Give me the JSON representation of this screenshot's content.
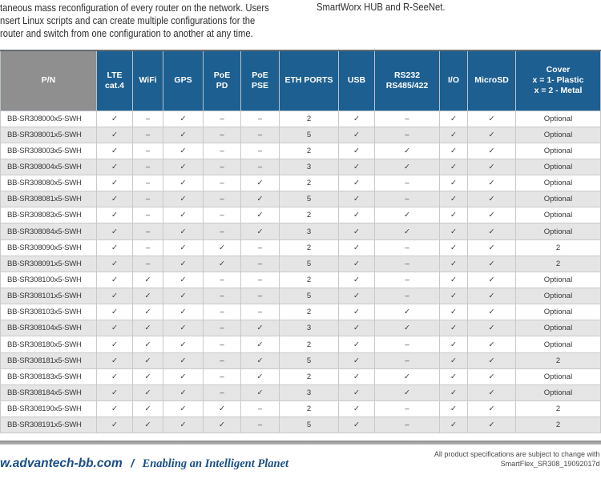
{
  "intro": {
    "left_lines": [
      "taneous mass reconfiguration of every router on the network. Users",
      "nsert Linux scripts and can create multiple configurations for the",
      "router and switch from one configuration to another at any time."
    ],
    "right_text": "SmartWorx HUB and R-SeeNet."
  },
  "table": {
    "header": {
      "pn": "P/N",
      "cols": [
        "LTE\ncat.4",
        "WiFi",
        "GPS",
        "PoE\nPD",
        "PoE\nPSE",
        "ETH PORTS",
        "USB",
        "RS232\nRS485/422",
        "I/O",
        "MicroSD",
        "Cover\nx = 1- Plastic\nx = 2 - Metal"
      ]
    },
    "check_glyph": "✓",
    "dash_glyph": "–",
    "rows": [
      {
        "pn": "BB-SR308000x5-SWH",
        "cells": [
          "✓",
          "–",
          "✓",
          "–",
          "–",
          "2",
          "✓",
          "–",
          "✓",
          "✓",
          "Optional"
        ]
      },
      {
        "pn": "BB-SR308001x5-SWH",
        "cells": [
          "✓",
          "–",
          "✓",
          "–",
          "–",
          "5",
          "✓",
          "–",
          "✓",
          "✓",
          "Optional"
        ]
      },
      {
        "pn": "BB-SR308003x5-SWH",
        "cells": [
          "✓",
          "–",
          "✓",
          "–",
          "–",
          "2",
          "✓",
          "✓",
          "✓",
          "✓",
          "Optional"
        ]
      },
      {
        "pn": "BB-SR308004x5-SWH",
        "cells": [
          "✓",
          "–",
          "✓",
          "–",
          "–",
          "3",
          "✓",
          "✓",
          "✓",
          "✓",
          "Optional"
        ]
      },
      {
        "pn": "BB-SR308080x5-SWH",
        "cells": [
          "✓",
          "–",
          "✓",
          "–",
          "✓",
          "2",
          "✓",
          "–",
          "✓",
          "✓",
          "Optional"
        ]
      },
      {
        "pn": "BB-SR308081x5-SWH",
        "cells": [
          "✓",
          "–",
          "✓",
          "–",
          "✓",
          "5",
          "✓",
          "–",
          "✓",
          "✓",
          "Optional"
        ]
      },
      {
        "pn": "BB-SR308083x5-SWH",
        "cells": [
          "✓",
          "–",
          "✓",
          "–",
          "✓",
          "2",
          "✓",
          "✓",
          "✓",
          "✓",
          "Optional"
        ]
      },
      {
        "pn": "BB-SR308084x5-SWH",
        "cells": [
          "✓",
          "–",
          "✓",
          "–",
          "✓",
          "3",
          "✓",
          "✓",
          "✓",
          "✓",
          "Optional"
        ]
      },
      {
        "pn": "BB-SR308090x5-SWH",
        "cells": [
          "✓",
          "–",
          "✓",
          "✓",
          "–",
          "2",
          "✓",
          "–",
          "✓",
          "✓",
          "2"
        ]
      },
      {
        "pn": "BB-SR308091x5-SWH",
        "cells": [
          "✓",
          "–",
          "✓",
          "✓",
          "–",
          "5",
          "✓",
          "–",
          "✓",
          "✓",
          "2"
        ]
      },
      {
        "pn": "BB-SR308100x5-SWH",
        "cells": [
          "✓",
          "✓",
          "✓",
          "–",
          "–",
          "2",
          "✓",
          "–",
          "✓",
          "✓",
          "Optional"
        ]
      },
      {
        "pn": "BB-SR308101x5-SWH",
        "cells": [
          "✓",
          "✓",
          "✓",
          "–",
          "–",
          "5",
          "✓",
          "–",
          "✓",
          "✓",
          "Optional"
        ]
      },
      {
        "pn": "BB-SR308103x5-SWH",
        "cells": [
          "✓",
          "✓",
          "✓",
          "–",
          "–",
          "2",
          "✓",
          "✓",
          "✓",
          "✓",
          "Optional"
        ]
      },
      {
        "pn": "BB-SR308104x5-SWH",
        "cells": [
          "✓",
          "✓",
          "✓",
          "–",
          "✓",
          "3",
          "✓",
          "✓",
          "✓",
          "✓",
          "Optional"
        ]
      },
      {
        "pn": "BB-SR308180x5-SWH",
        "cells": [
          "✓",
          "✓",
          "✓",
          "–",
          "✓",
          "2",
          "✓",
          "–",
          "✓",
          "✓",
          "Optional"
        ]
      },
      {
        "pn": "BB-SR308181x5-SWH",
        "cells": [
          "✓",
          "✓",
          "✓",
          "–",
          "✓",
          "5",
          "✓",
          "–",
          "✓",
          "✓",
          "2"
        ]
      },
      {
        "pn": "BB-SR308183x5-SWH",
        "cells": [
          "✓",
          "✓",
          "✓",
          "–",
          "✓",
          "2",
          "✓",
          "✓",
          "✓",
          "✓",
          "Optional"
        ]
      },
      {
        "pn": "BB-SR308184x5-SWH",
        "cells": [
          "✓",
          "✓",
          "✓",
          "–",
          "✓",
          "3",
          "✓",
          "✓",
          "✓",
          "✓",
          "Optional"
        ]
      },
      {
        "pn": "BB-SR308190x5-SWH",
        "cells": [
          "✓",
          "✓",
          "✓",
          "✓",
          "–",
          "2",
          "✓",
          "–",
          "✓",
          "✓",
          "2"
        ]
      },
      {
        "pn": "BB-SR308191x5-SWH",
        "cells": [
          "✓",
          "✓",
          "✓",
          "✓",
          "–",
          "5",
          "✓",
          "–",
          "✓",
          "✓",
          "2"
        ]
      }
    ]
  },
  "footer": {
    "website": "w.advantech-bb.com",
    "separator": "/",
    "tagline": "Enabling an Intelligent Planet",
    "note_line1": "All product specifications are subject to change with",
    "note_line2": "SmartFlex_SR308_19092017d"
  },
  "colors": {
    "header_blue": "#1d5f90",
    "header_gray": "#8f8f8f",
    "row_alt_gray": "#e5e5e5",
    "footer_blue": "#1a4f86"
  }
}
